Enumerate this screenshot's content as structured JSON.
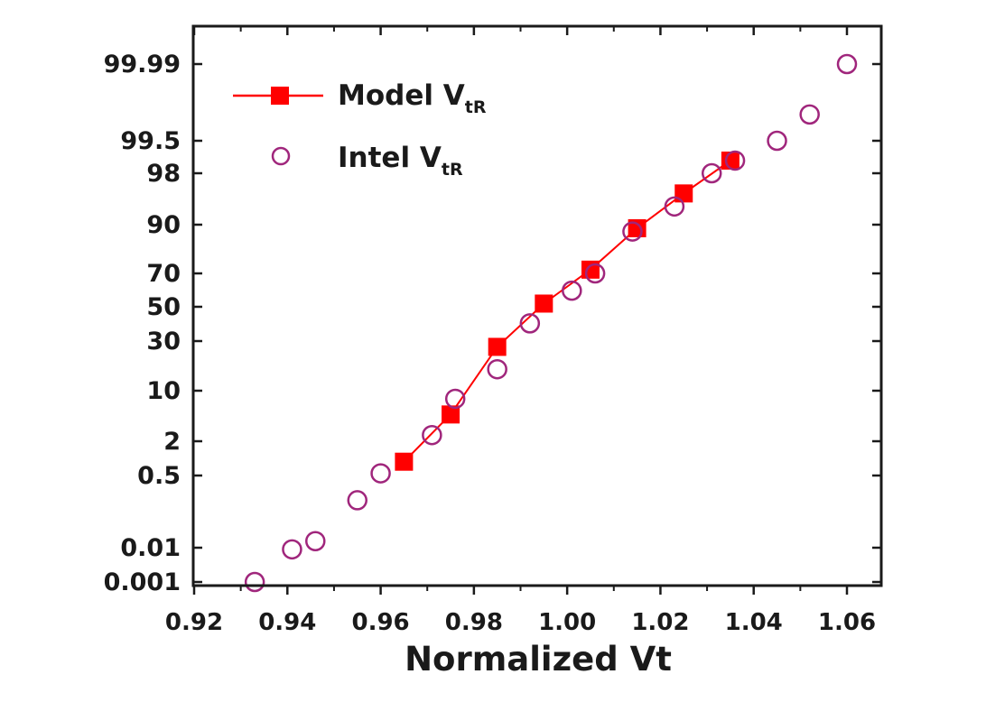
{
  "chart_data": {
    "type": "scatter",
    "title": "",
    "xlabel": "Normalized Vt",
    "ylabel": "",
    "xlim": [
      0.92,
      1.07
    ],
    "x_ticks": [
      0.92,
      0.94,
      0.96,
      0.98,
      1.0,
      1.02,
      1.04,
      1.06
    ],
    "x_tick_labels": [
      "0.92",
      "0.94",
      "0.96",
      "0.98",
      "1.00",
      "1.02",
      "1.04",
      "1.06"
    ],
    "y_scale": "normal-probability",
    "y_ticks": [
      0.001,
      0.01,
      0.5,
      2,
      10,
      30,
      50,
      70,
      90,
      98,
      99.5,
      99.99
    ],
    "y_tick_labels": [
      "0.001",
      "0.01",
      "0.5",
      "2",
      "10",
      "30",
      "50",
      "70",
      "90",
      "98",
      "99.5",
      "99.99"
    ],
    "legend": {
      "position": "top-left",
      "entries": [
        {
          "label_main": "Model V",
          "label_sub": "tR"
        },
        {
          "label_main": "Intel V",
          "label_sub": "tR"
        }
      ]
    },
    "colors": {
      "model": "#ff0000",
      "intel": "#a0267c",
      "axis": "#1a1a1a"
    },
    "series": [
      {
        "name": "Model VtR",
        "style": "line-square",
        "x": [
          0.965,
          0.975,
          0.985,
          0.995,
          1.005,
          1.015,
          1.025,
          1.035
        ],
        "y": [
          0.9,
          5,
          27,
          52,
          72,
          89,
          96,
          98.8
        ]
      },
      {
        "name": "Intel VtR",
        "style": "open-circle",
        "x": [
          0.933,
          0.941,
          0.946,
          0.955,
          0.96,
          0.971,
          0.976,
          0.985,
          0.992,
          1.001,
          1.006,
          1.014,
          1.023,
          1.031,
          1.036,
          1.045,
          1.052,
          1.06
        ],
        "y": [
          0.001,
          0.009,
          0.015,
          0.15,
          0.55,
          2.5,
          8,
          17,
          40,
          60,
          70,
          88,
          94,
          98,
          98.8,
          99.5,
          99.85,
          99.99
        ]
      }
    ]
  }
}
